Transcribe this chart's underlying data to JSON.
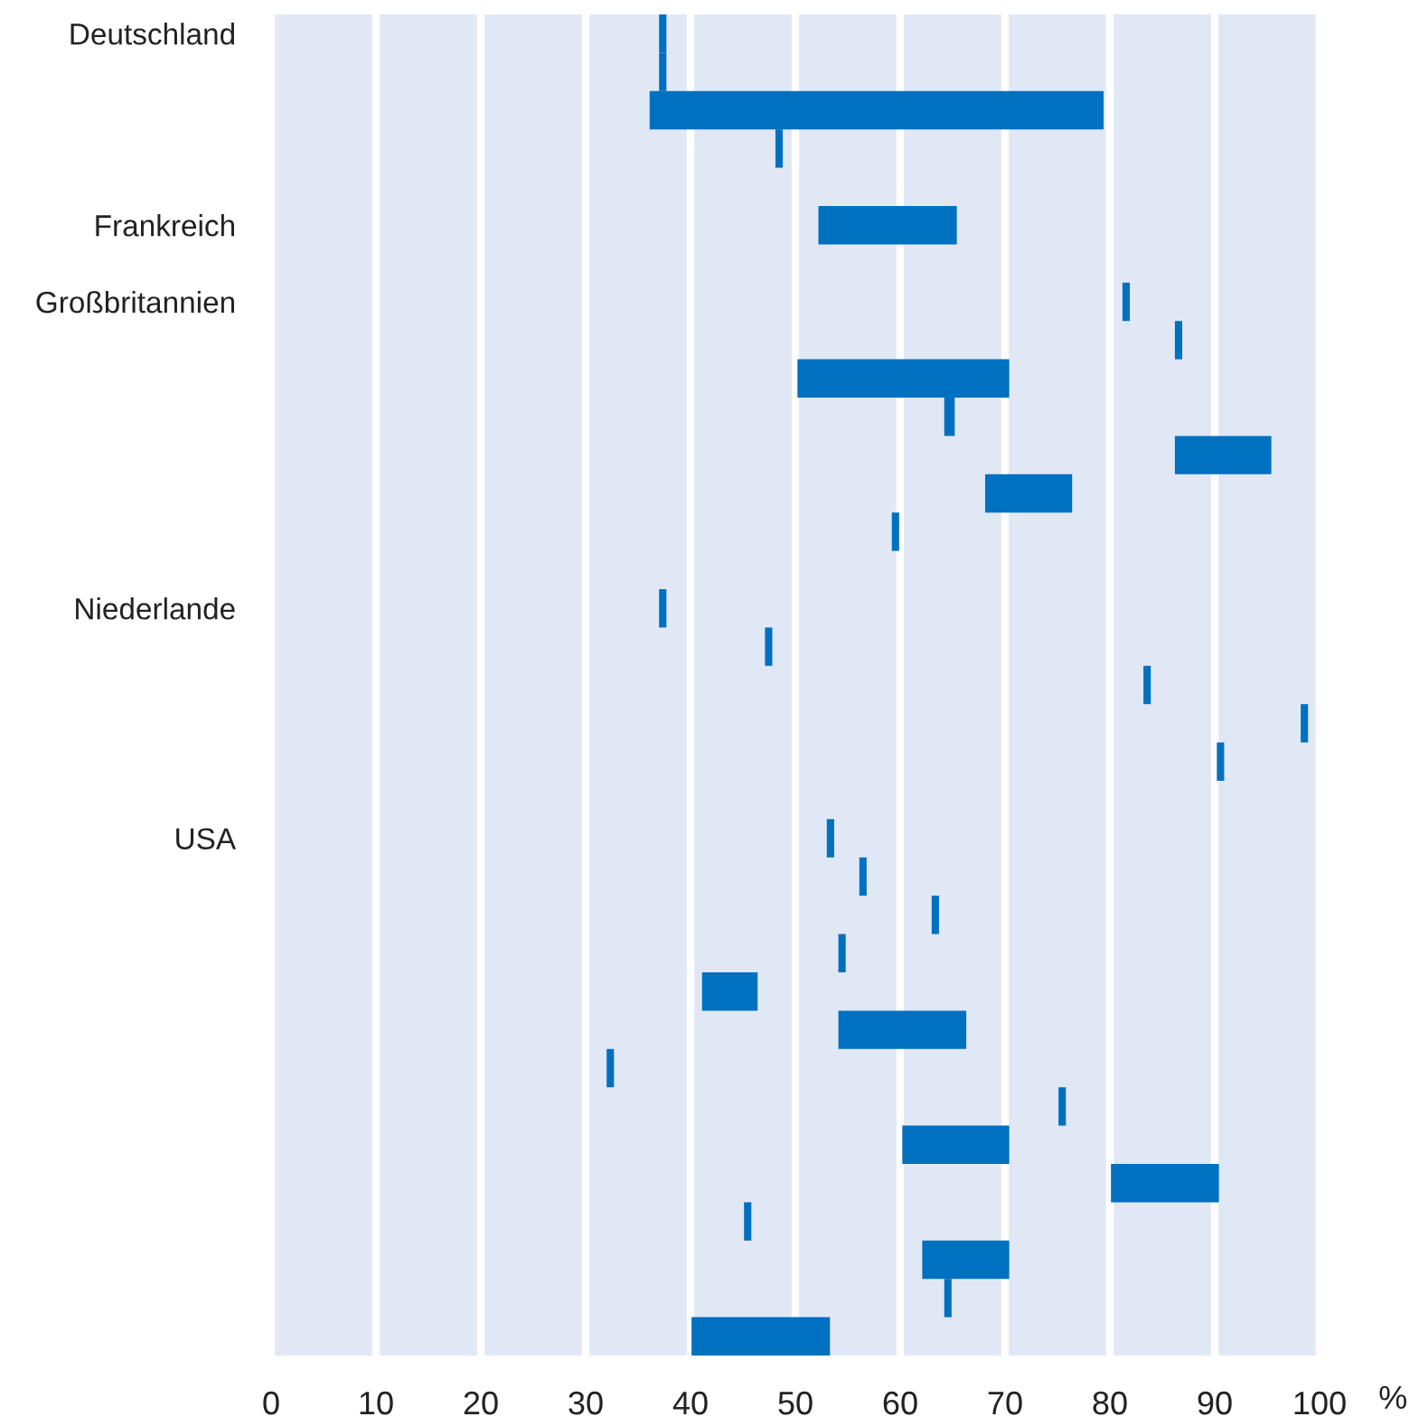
{
  "chart_data": {
    "type": "bar",
    "orientation": "horizontal",
    "xlabel": "%",
    "categories": [
      "Deutschland",
      null,
      null,
      null,
      null,
      "Frankreich",
      null,
      "Großbritannien",
      null,
      null,
      null,
      null,
      null,
      null,
      null,
      "Niederlande",
      null,
      null,
      null,
      null,
      null,
      "USA",
      null,
      null,
      null,
      null,
      null,
      null,
      null,
      null,
      null,
      null,
      null,
      null,
      null
    ],
    "base": [
      37.0,
      37.0,
      36.1,
      48.1,
      null,
      52.2,
      null,
      81.2,
      86.2,
      50.2,
      64.2,
      86.2,
      68.1,
      59.2,
      null,
      37.0,
      47.1,
      83.2,
      98.2,
      90.2,
      null,
      53.0,
      56.1,
      63.0,
      54.1,
      41.1,
      54.1,
      32.0,
      75.1,
      60.2,
      80.1,
      45.1,
      62.1,
      64.2,
      40.1
    ],
    "values": [
      0.7,
      0.7,
      43.3,
      0.7,
      null,
      13.2,
      null,
      0.7,
      0.7,
      20.2,
      1.0,
      9.2,
      8.3,
      0.7,
      null,
      0.7,
      0.7,
      0.7,
      0.7,
      0.7,
      null,
      0.7,
      0.7,
      0.7,
      0.7,
      5.3,
      12.2,
      0.7,
      0.7,
      10.2,
      10.3,
      0.7,
      8.3,
      0.7,
      13.2
    ],
    "color": "#0070c0",
    "xlim": [
      0,
      100
    ],
    "xticks": [
      0,
      10,
      20,
      30,
      40,
      50,
      60,
      70,
      80,
      90,
      100
    ],
    "grid": "x"
  }
}
